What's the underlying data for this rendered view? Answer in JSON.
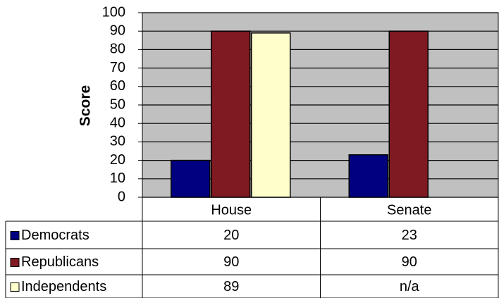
{
  "chart_data": {
    "type": "bar",
    "y_label": "Score",
    "categories": [
      "House",
      "Senate"
    ],
    "series": [
      {
        "name": "Democrats",
        "color": "#000080",
        "values": [
          20,
          23
        ]
      },
      {
        "name": "Republicans",
        "color": "#7f1a22",
        "values": [
          90,
          90
        ]
      },
      {
        "name": "Independents",
        "color": "#ffffcc",
        "values": [
          89,
          null
        ],
        "value_labels": [
          "89",
          "n/a"
        ]
      }
    ],
    "ylim": [
      0,
      100
    ],
    "yticks": [
      0,
      10,
      20,
      30,
      40,
      50,
      60,
      70,
      80,
      90,
      100
    ],
    "grid": true,
    "plot_background": "#c0c0c0"
  }
}
